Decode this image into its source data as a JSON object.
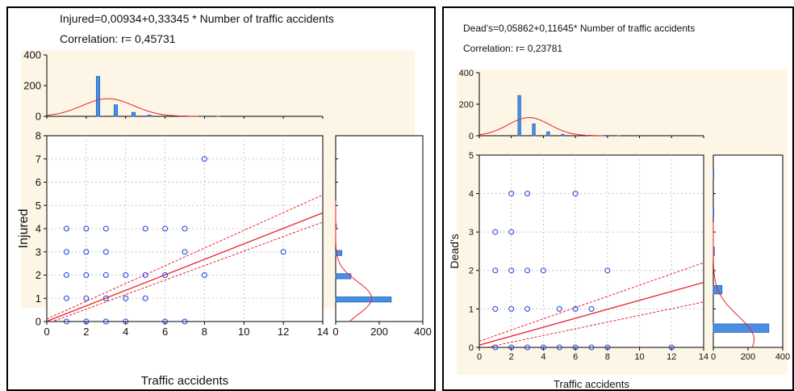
{
  "colors": {
    "panel_fill": "#fdf6e6",
    "plot_fill": "#ffffff",
    "point": "#1f3fe0",
    "line": "#e8212a",
    "bar_fill": "#4a90e2",
    "bar_edge": "#1f5fbf",
    "text": "#111111",
    "grid": "#c9c9c9"
  },
  "chart_data": [
    {
      "type": "scatter",
      "equation": "Injured=0,00934+0,33345 * Number of traffic accidents",
      "correlation": "Correlation: r= 0,45731",
      "xlabel": "Traffic accidents",
      "ylabel": "Injured",
      "xlim": [
        0,
        14
      ],
      "ylim": [
        0,
        8
      ],
      "x_ticks": [
        "0",
        "2",
        "4",
        "6",
        "8",
        "10",
        "12",
        "14"
      ],
      "y_ticks": [
        "0",
        "1",
        "2",
        "3",
        "4",
        "5",
        "6",
        "7",
        "8"
      ],
      "grid": true,
      "regression": {
        "intercept": 0.00934,
        "slope": 0.33345
      },
      "confidence_band": {
        "lower": [
          [
            0,
            -0.09
          ],
          [
            14,
            4.28
          ]
        ],
        "upper": [
          [
            0,
            0.11
          ],
          [
            14,
            5.45
          ]
        ]
      },
      "points": [
        [
          1,
          0
        ],
        [
          2,
          0
        ],
        [
          3,
          0
        ],
        [
          4,
          0
        ],
        [
          6,
          0
        ],
        [
          7,
          0
        ],
        [
          1,
          1
        ],
        [
          2,
          1
        ],
        [
          3,
          1
        ],
        [
          4,
          1
        ],
        [
          5,
          1
        ],
        [
          1,
          2
        ],
        [
          2,
          2
        ],
        [
          3,
          2
        ],
        [
          4,
          2
        ],
        [
          5,
          2
        ],
        [
          6,
          2
        ],
        [
          8,
          2
        ],
        [
          1,
          3
        ],
        [
          2,
          3
        ],
        [
          3,
          3
        ],
        [
          7,
          3
        ],
        [
          12,
          3
        ],
        [
          1,
          4
        ],
        [
          2,
          4
        ],
        [
          3,
          4
        ],
        [
          5,
          4
        ],
        [
          6,
          4
        ],
        [
          7,
          4
        ],
        [
          8,
          7
        ]
      ],
      "top_histogram": {
        "ylim": [
          0,
          400
        ],
        "y_ticks": [
          "0",
          "200",
          "400"
        ],
        "bins": [
          [
            2.6,
            260
          ],
          [
            3.5,
            75
          ],
          [
            4.4,
            25
          ],
          [
            5.2,
            8
          ],
          [
            7.0,
            3
          ],
          [
            7.9,
            2
          ],
          [
            8.7,
            1
          ]
        ],
        "curve": {
          "mean": 3.1,
          "sd": 1.3,
          "peak": 115
        }
      },
      "right_histogram": {
        "xlim": [
          0,
          400
        ],
        "x_ticks": [
          "0",
          "200",
          "400"
        ],
        "bars": [
          [
            0.95,
            255
          ],
          [
            1.95,
            70
          ],
          [
            2.95,
            28
          ],
          [
            4.1,
            3
          ]
        ],
        "curve": {
          "mean": 1.0,
          "sd": 0.72,
          "peak": 165
        }
      }
    },
    {
      "type": "scatter",
      "equation": "Dead's=0,05862+0,11645* Number of traffic accidents",
      "correlation": "Correlation: r= 0,23781",
      "xlabel": "Traffic accidents",
      "ylabel": "Dead's",
      "xlim": [
        0,
        14
      ],
      "ylim": [
        0,
        5
      ],
      "x_ticks": [
        "0",
        "2",
        "4",
        "6",
        "8",
        "10",
        "12",
        "14"
      ],
      "y_ticks": [
        "0",
        "1",
        "2",
        "3",
        "4",
        "5"
      ],
      "grid": true,
      "regression": {
        "intercept": 0.05862,
        "slope": 0.11645
      },
      "confidence_band": {
        "lower": [
          [
            0,
            -0.04
          ],
          [
            14,
            1.18
          ]
        ],
        "upper": [
          [
            0,
            0.16
          ],
          [
            14,
            2.2
          ]
        ]
      },
      "points": [
        [
          1,
          0
        ],
        [
          2,
          0
        ],
        [
          3,
          0
        ],
        [
          4,
          0
        ],
        [
          5,
          0
        ],
        [
          6,
          0
        ],
        [
          7,
          0
        ],
        [
          8,
          0
        ],
        [
          12,
          0
        ],
        [
          1,
          1
        ],
        [
          2,
          1
        ],
        [
          3,
          1
        ],
        [
          5,
          1
        ],
        [
          6,
          1
        ],
        [
          7,
          1
        ],
        [
          1,
          2
        ],
        [
          2,
          2
        ],
        [
          3,
          2
        ],
        [
          4,
          2
        ],
        [
          8,
          2
        ],
        [
          1,
          3
        ],
        [
          2,
          3
        ],
        [
          2,
          4
        ],
        [
          3,
          4
        ],
        [
          6,
          4
        ]
      ],
      "top_histogram": {
        "ylim": [
          0,
          400
        ],
        "y_ticks": [
          "0",
          "200",
          "400"
        ],
        "bins": [
          [
            2.5,
            255
          ],
          [
            3.4,
            75
          ],
          [
            4.3,
            25
          ],
          [
            5.2,
            8
          ],
          [
            6.9,
            3
          ],
          [
            7.8,
            2
          ],
          [
            8.7,
            1
          ]
        ],
        "curve": {
          "mean": 3.1,
          "sd": 1.3,
          "peak": 115
        }
      },
      "right_histogram": {
        "xlim": [
          0,
          400
        ],
        "x_ticks": [
          "0",
          "200",
          "400"
        ],
        "bars": [
          [
            0.5,
            320
          ],
          [
            1.5,
            50
          ],
          [
            2.5,
            6
          ],
          [
            3.5,
            3
          ],
          [
            4.5,
            3
          ]
        ],
        "curve": {
          "mean": 0.2,
          "sd": 0.62,
          "peak": 235
        }
      }
    }
  ]
}
